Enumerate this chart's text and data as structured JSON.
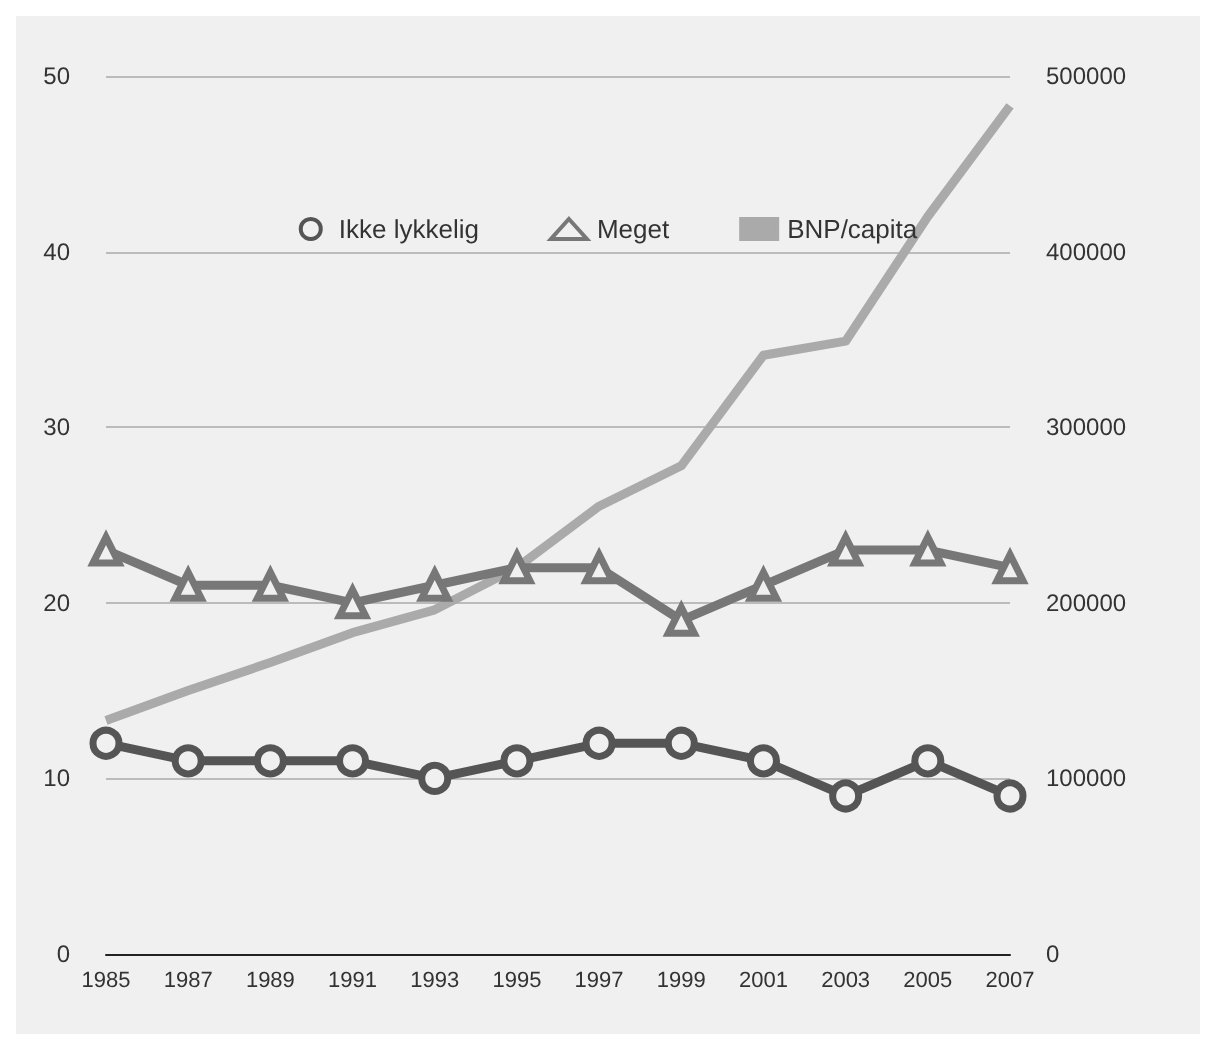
{
  "chart_data": {
    "type": "line",
    "categories": [
      "1985",
      "1987",
      "1989",
      "1991",
      "1993",
      "1995",
      "1997",
      "1999",
      "2001",
      "2003",
      "2005",
      "2007"
    ],
    "series": [
      {
        "name": "Ikke lykkelig",
        "color": "#555555",
        "marker": "circle",
        "values": [
          12,
          11,
          11,
          11,
          10,
          11,
          12,
          12,
          11,
          9,
          11,
          9
        ]
      },
      {
        "name": "Meget",
        "color": "#777777",
        "marker": "triangle",
        "values": [
          23,
          21,
          21,
          20,
          21,
          22,
          22,
          19,
          21,
          23,
          23,
          22
        ]
      },
      {
        "name": "BNP/capita",
        "color": "#aaaaaa",
        "marker": "none",
        "axis": "y2",
        "values": [
          133000,
          150000,
          166000,
          183000,
          196000,
          220000,
          255000,
          278000,
          341000,
          349000,
          420000,
          483000
        ]
      }
    ],
    "ylim": [
      0,
      50
    ],
    "yticks": [
      0,
      10,
      20,
      30,
      40,
      50
    ],
    "y2lim": [
      0,
      500000
    ],
    "y2ticks": [
      0,
      100000,
      200000,
      300000,
      400000,
      500000
    ],
    "grid": "y",
    "legend": "top"
  }
}
